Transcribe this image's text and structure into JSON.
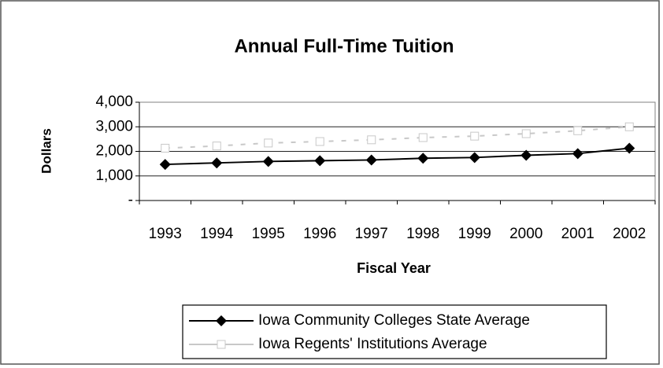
{
  "chart_data": {
    "type": "line",
    "title": "Annual Full-Time Tuition",
    "xlabel": "Fiscal Year",
    "ylabel": "Dollars",
    "categories": [
      "1993",
      "1994",
      "1995",
      "1996",
      "1997",
      "1998",
      "1999",
      "2000",
      "2001",
      "2002"
    ],
    "series": [
      {
        "name": "Iowa Community Colleges State Average",
        "color": "#000000",
        "marker": "diamond",
        "values": [
          1470,
          1530,
          1590,
          1620,
          1650,
          1720,
          1750,
          1840,
          1910,
          2130
        ]
      },
      {
        "name": "Iowa Regents' Institutions Average",
        "color": "#c8c8c8",
        "marker": "square",
        "values": [
          2130,
          2220,
          2340,
          2400,
          2470,
          2560,
          2620,
          2720,
          2840,
          3000
        ]
      }
    ],
    "ylim": [
      0,
      4000
    ],
    "yticks": [
      {
        "value": 0,
        "label": "-"
      },
      {
        "value": 1000,
        "label": "1,000"
      },
      {
        "value": 2000,
        "label": "2,000"
      },
      {
        "value": 3000,
        "label": "3,000"
      },
      {
        "value": 4000,
        "label": "4,000"
      }
    ],
    "grid": true,
    "legend": "bottom"
  }
}
